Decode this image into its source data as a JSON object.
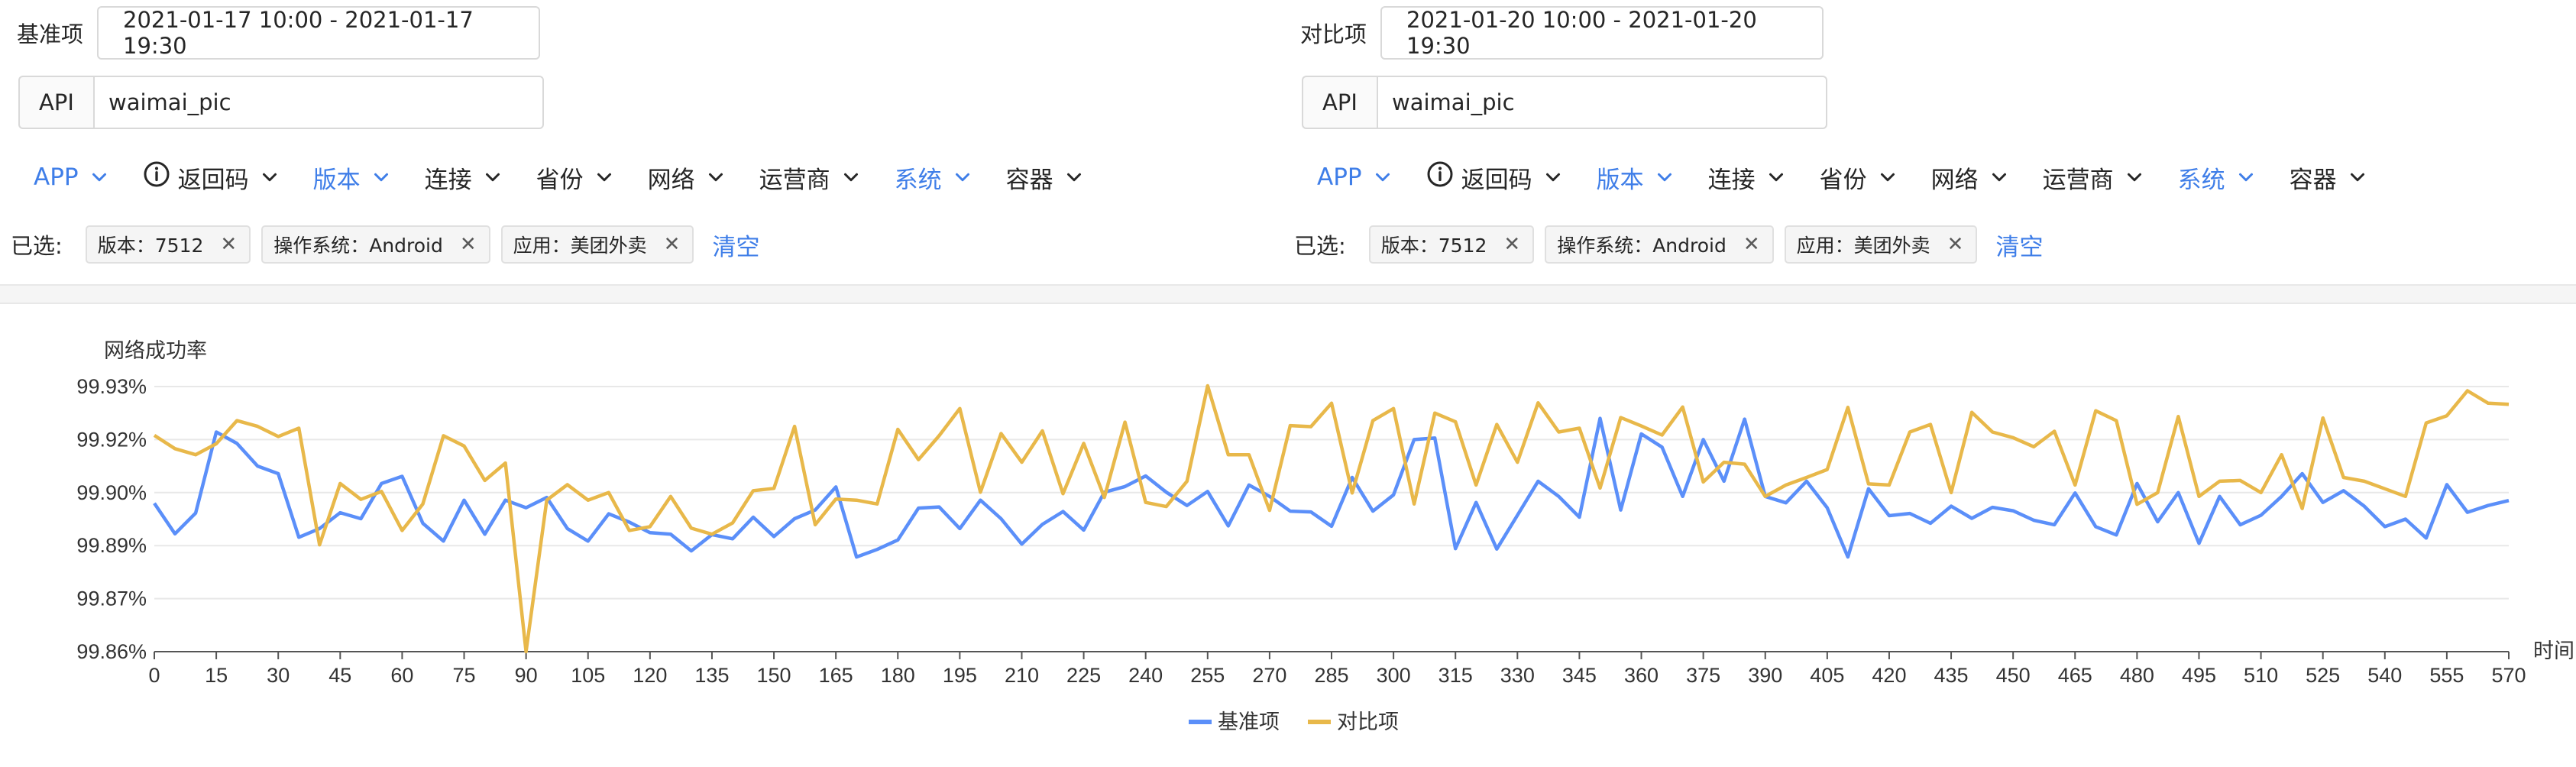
{
  "left": {
    "time_label": "基准项",
    "time_range": "2021-01-17 10:00 - 2021-01-17 19:30",
    "api_label": "API",
    "api_value": "waimai_pic",
    "filters": [
      {
        "label": "APP",
        "active": true
      },
      {
        "label": "返回码",
        "active": false,
        "icon": "info-icon"
      },
      {
        "label": "版本",
        "active": true
      },
      {
        "label": "连接",
        "active": false
      },
      {
        "label": "省份",
        "active": false
      },
      {
        "label": "网络",
        "active": false
      },
      {
        "label": "运营商",
        "active": false
      },
      {
        "label": "系统",
        "active": true
      },
      {
        "label": "容器",
        "active": false
      }
    ],
    "selected_label": "已选:",
    "tags": [
      "版本：7512",
      "操作系统：Android",
      "应用：美团外卖"
    ],
    "clear_label": "清空"
  },
  "right": {
    "time_label": "对比项",
    "time_range": "2021-01-20 10:00 - 2021-01-20 19:30",
    "api_label": "API",
    "api_value": "waimai_pic",
    "filters": [
      {
        "label": "APP",
        "active": true
      },
      {
        "label": "返回码",
        "active": false,
        "icon": "info-icon"
      },
      {
        "label": "版本",
        "active": true
      },
      {
        "label": "连接",
        "active": false
      },
      {
        "label": "省份",
        "active": false
      },
      {
        "label": "网络",
        "active": false
      },
      {
        "label": "运营商",
        "active": false
      },
      {
        "label": "系统",
        "active": true
      },
      {
        "label": "容器",
        "active": false
      }
    ],
    "selected_label": "已选:",
    "tags": [
      "版本：7512",
      "操作系统：Android",
      "应用：美团外卖"
    ],
    "clear_label": "清空"
  },
  "colors": {
    "accent": "#3f7ee8",
    "series_base": "#5b8ff9",
    "series_compare": "#e8b84a"
  },
  "chart_data": {
    "type": "line",
    "ylabel": "网络成功率",
    "xlabel": "时间",
    "x_ticks": [
      0,
      15,
      30,
      45,
      60,
      75,
      90,
      105,
      120,
      135,
      150,
      165,
      180,
      195,
      210,
      225,
      240,
      255,
      270,
      285,
      300,
      315,
      330,
      345,
      360,
      375,
      390,
      405,
      420,
      435,
      450,
      465,
      480,
      495,
      510,
      525,
      540,
      555,
      570
    ],
    "y_ticks": [
      "99.86%",
      "99.87%",
      "99.89%",
      "99.90%",
      "99.92%",
      "99.93%"
    ],
    "ylim": [
      99.86,
      99.93
    ],
    "x_step": 5,
    "series": [
      {
        "name": "基准项",
        "values": [
          99.8992,
          99.8911,
          99.8966,
          99.918,
          99.915,
          99.909,
          99.907,
          99.8902,
          99.8925,
          99.8967,
          99.8951,
          99.9044,
          99.9063,
          99.8939,
          99.8892,
          99.9,
          99.891,
          99.9,
          99.898,
          99.9007,
          99.8925,
          99.8892,
          99.8964,
          99.8942,
          99.8914,
          99.891,
          99.8866,
          99.8909,
          99.8898,
          99.8955,
          99.8904,
          99.8951,
          99.8974,
          99.9035,
          99.885,
          99.887,
          99.8895,
          99.8979,
          99.8982,
          99.8925,
          99.9,
          99.8951,
          99.8884,
          99.8936,
          99.897,
          99.8921,
          99.9021,
          99.9036,
          99.9064,
          99.9021,
          99.8986,
          99.9023,
          99.8932,
          99.904,
          99.901,
          99.8971,
          99.8969,
          99.8931,
          99.906,
          99.8971,
          99.9014,
          99.916,
          99.9164,
          99.8872,
          99.8994,
          99.8871,
          99.896,
          99.905,
          99.901,
          99.8955,
          99.9216,
          99.8974,
          99.9175,
          99.914,
          99.901,
          99.916,
          99.905,
          99.9214,
          99.901,
          99.8993,
          99.905,
          99.898,
          99.885,
          99.903,
          99.8959,
          99.8965,
          99.8939,
          99.8984,
          99.8952,
          99.8981,
          99.8972,
          99.8947,
          99.8935,
          99.9019,
          99.893,
          99.8908,
          99.9044,
          99.8943,
          99.902,
          99.8886,
          99.901,
          99.8935,
          99.896,
          99.901,
          99.907,
          99.8994,
          99.9025,
          99.8984,
          99.893,
          99.895,
          99.89,
          99.9041,
          99.8968,
          99.8986,
          99.8999
        ]
      },
      {
        "name": "对比项",
        "values": [
          99.9171,
          99.9136,
          99.912,
          99.9149,
          99.921,
          99.9195,
          99.9168,
          99.919,
          99.8882,
          99.9044,
          99.9002,
          99.9023,
          99.892,
          99.899,
          99.917,
          99.9143,
          99.9052,
          99.9098,
          99.86,
          99.9,
          99.9041,
          99.9,
          99.902,
          99.892,
          99.893,
          99.901,
          99.8926,
          99.891,
          99.894,
          99.9025,
          99.9031,
          99.9195,
          99.8935,
          99.9003,
          99.9,
          99.899,
          99.9187,
          99.9107,
          99.917,
          99.9242,
          99.9021,
          99.9176,
          99.91,
          99.9183,
          99.9017,
          99.915,
          99.9007,
          99.9206,
          99.8994,
          99.8983,
          99.905,
          99.9302,
          99.912,
          99.912,
          99.8973,
          99.9197,
          99.9194,
          99.9256,
          99.9019,
          99.921,
          99.9242,
          99.899,
          99.923,
          99.9207,
          99.904,
          99.92,
          99.91,
          99.9257,
          99.918,
          99.919,
          99.9032,
          99.9218,
          99.9196,
          99.9172,
          99.9246,
          99.9048,
          99.91,
          99.9095,
          99.901,
          99.904,
          99.906,
          99.9081,
          99.9245,
          99.9043,
          99.904,
          99.918,
          99.92,
          99.902,
          99.9232,
          99.918,
          99.9165,
          99.9141,
          99.9182,
          99.904,
          99.9236,
          99.921,
          99.8989,
          99.902,
          99.9221,
          99.901,
          99.905,
          99.9052,
          99.902,
          99.912,
          99.8978,
          99.9217,
          99.906,
          99.905,
          99.903,
          99.901,
          99.9204,
          99.9223,
          99.9289,
          99.9256,
          99.9253
        ]
      }
    ],
    "legend_position": "bottom-center",
    "grid": true
  }
}
